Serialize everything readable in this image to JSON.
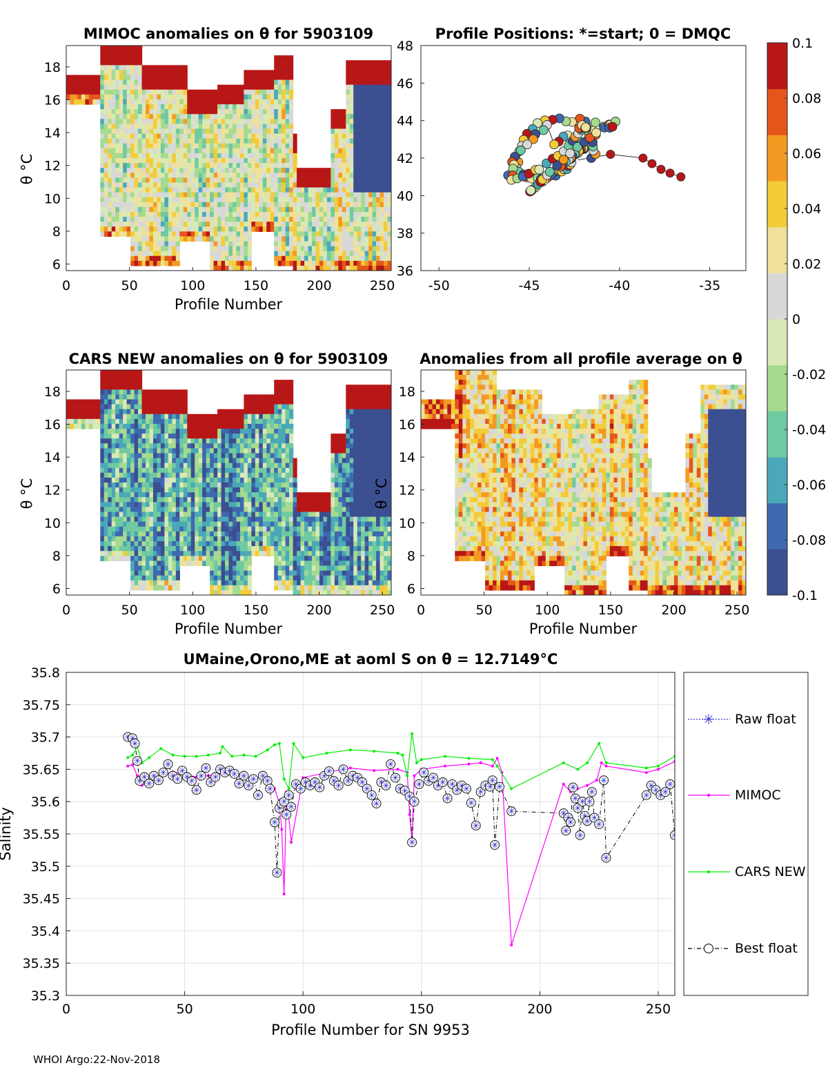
{
  "figure": {
    "footer": "WHOI Argo:22-Nov-2018",
    "colormap": [
      "#3b4f91",
      "#3f68b0",
      "#4aa8b8",
      "#6fcaa2",
      "#a5da8f",
      "#d8e9b5",
      "#d8d8d8",
      "#efe19a",
      "#f3cc3a",
      "#f39a22",
      "#e5561a",
      "#b81717"
    ]
  },
  "chart_data": [
    {
      "id": "mimoc-anomaly",
      "type": "heatmap",
      "title": "MIMOC anomalies on θ  for 5903109",
      "xlabel": "Profile Number",
      "ylabel": "θ °C",
      "xlim": [
        0,
        257
      ],
      "ylim": [
        5.6,
        19.3
      ],
      "xticks": [
        "0",
        "50",
        "100",
        "150",
        "200",
        "250"
      ],
      "yticks": [
        "6",
        "8",
        "10",
        "12",
        "14",
        "16",
        "18"
      ],
      "bias": 0.0,
      "top_hot": true
    },
    {
      "id": "profile-positions",
      "type": "scatter",
      "title": "Profile Positions: *=start; 0 = DMQC",
      "xlim": [
        -51,
        -33
      ],
      "ylim": [
        36,
        48
      ],
      "xticks": [
        "-50",
        "-45",
        "-40",
        "-35"
      ],
      "yticks": [
        "36",
        "38",
        "40",
        "42",
        "44",
        "46",
        "48"
      ],
      "track_note": "about 256 float positions colored by anomaly, centered near -43°E, 42°N",
      "spur": [
        [
          -40.5,
          42.2
        ],
        [
          -38.7,
          42.0
        ],
        [
          -38.2,
          41.7
        ],
        [
          -37.7,
          41.4
        ],
        [
          -37.2,
          41.2
        ],
        [
          -36.6,
          41.0
        ]
      ]
    },
    {
      "id": "cars-anomaly",
      "type": "heatmap",
      "title": "CARS NEW anomalies on θ for 5903109",
      "xlabel": "Profile Number",
      "ylabel": "θ °C",
      "xlim": [
        0,
        257
      ],
      "ylim": [
        5.6,
        19.3
      ],
      "xticks": [
        "0",
        "50",
        "100",
        "150",
        "200",
        "250"
      ],
      "yticks": [
        "6",
        "8",
        "10",
        "12",
        "14",
        "16",
        "18"
      ],
      "bias": -0.055,
      "top_hot": true
    },
    {
      "id": "average-anomaly",
      "type": "heatmap",
      "title": "Anomalies from all profile average on θ",
      "xlabel": "Profile Number",
      "ylabel": "θ °C",
      "xlim": [
        0,
        257
      ],
      "ylim": [
        5.6,
        19.3
      ],
      "xticks": [
        "0",
        "50",
        "100",
        "150",
        "200",
        "250"
      ],
      "yticks": [
        "6",
        "8",
        "10",
        "12",
        "14",
        "16",
        "18"
      ],
      "bias": 0.02,
      "top_hot": false
    },
    {
      "id": "colorbar",
      "type": "colorbar",
      "ticks": [
        "0.1",
        "0.08",
        "0.06",
        "0.04",
        "0.02",
        "0",
        "-0.02",
        "-0.04",
        "-0.06",
        "-0.08",
        "-0.1"
      ],
      "range": [
        -0.1,
        0.1
      ]
    },
    {
      "id": "salinity-series",
      "type": "line",
      "title": "UMaine,Orono,ME at aoml S on θ = 12.7149°C",
      "xlabel": "Profile Number for SN 9953",
      "ylabel": "Salinity",
      "xlim": [
        0,
        257
      ],
      "ylim": [
        35.3,
        35.8
      ],
      "xticks": [
        "0",
        "50",
        "100",
        "150",
        "200",
        "250"
      ],
      "yticks": [
        "35.3",
        "35.35",
        "35.4",
        "35.45",
        "35.5",
        "35.55",
        "35.6",
        "35.65",
        "35.7",
        "35.75",
        "35.8"
      ],
      "legend": [
        "Raw float",
        "MIMOC",
        "CARS NEW",
        "Best float"
      ],
      "series": [
        {
          "name": "MIMOC",
          "color": "#ff00ff",
          "x": [
            26,
            28,
            30,
            32,
            35,
            40,
            45,
            50,
            55,
            60,
            65,
            70,
            75,
            80,
            85,
            88,
            90,
            91,
            92,
            93,
            95,
            100,
            110,
            120,
            130,
            140,
            144,
            145,
            146,
            147,
            150,
            160,
            170,
            175,
            180,
            182,
            184,
            188,
            210,
            213,
            216,
            220,
            224,
            226,
            228,
            245,
            250,
            257
          ],
          "y": [
            35.655,
            35.657,
            35.64,
            35.625,
            35.632,
            35.64,
            35.646,
            35.642,
            35.638,
            35.64,
            35.644,
            35.641,
            35.638,
            35.637,
            35.637,
            35.62,
            35.598,
            35.557,
            35.457,
            35.615,
            35.537,
            35.637,
            35.645,
            35.652,
            35.648,
            35.65,
            35.645,
            35.58,
            35.54,
            35.64,
            35.65,
            35.655,
            35.658,
            35.66,
            35.655,
            35.667,
            35.645,
            35.378,
            35.627,
            35.615,
            35.62,
            35.625,
            35.633,
            35.66,
            35.655,
            35.645,
            35.65,
            35.662
          ]
        },
        {
          "name": "CARS NEW",
          "color": "#00ee00",
          "x": [
            26,
            28,
            30,
            32,
            35,
            40,
            45,
            50,
            55,
            60,
            65,
            66,
            70,
            75,
            80,
            85,
            88,
            90,
            92,
            94,
            96,
            100,
            110,
            120,
            130,
            140,
            142,
            144,
            146,
            148,
            150,
            160,
            170,
            180,
            182,
            188,
            210,
            216,
            220,
            225,
            228,
            245,
            250,
            257
          ],
          "y": [
            35.668,
            35.672,
            35.685,
            35.66,
            35.668,
            35.682,
            35.672,
            35.67,
            35.67,
            35.672,
            35.675,
            35.685,
            35.67,
            35.672,
            35.67,
            35.68,
            35.688,
            35.69,
            35.635,
            35.62,
            35.69,
            35.668,
            35.675,
            35.68,
            35.678,
            35.675,
            35.672,
            35.64,
            35.705,
            35.66,
            35.665,
            35.67,
            35.667,
            35.665,
            35.655,
            35.62,
            35.66,
            35.65,
            35.66,
            35.69,
            35.66,
            35.652,
            35.655,
            35.67
          ]
        },
        {
          "name": "Best float",
          "color": "#000000",
          "x": [
            26,
            28,
            29,
            30,
            31,
            33,
            35,
            37,
            39,
            41,
            43,
            45,
            47,
            49,
            51,
            53,
            55,
            57,
            59,
            61,
            63,
            65,
            67,
            69,
            71,
            73,
            75,
            77,
            79,
            81,
            83,
            85,
            86,
            88,
            89,
            90,
            91,
            92,
            93,
            94,
            95,
            97,
            99,
            101,
            103,
            105,
            107,
            109,
            111,
            113,
            115,
            117,
            119,
            121,
            123,
            125,
            127,
            129,
            131,
            133,
            135,
            137,
            139,
            141,
            143,
            145,
            146,
            147,
            149,
            151,
            153,
            155,
            157,
            159,
            161,
            163,
            165,
            167,
            169,
            171,
            173,
            175,
            177,
            179,
            180,
            181,
            183,
            188,
            210,
            211,
            212,
            213,
            214,
            215,
            216,
            217,
            218,
            219,
            220,
            221,
            222,
            223,
            225,
            227,
            228,
            245,
            247,
            249,
            251,
            253,
            255,
            257
          ],
          "y": [
            35.7,
            35.698,
            35.69,
            35.663,
            35.632,
            35.638,
            35.628,
            35.64,
            35.633,
            35.645,
            35.658,
            35.64,
            35.635,
            35.648,
            35.638,
            35.632,
            35.618,
            35.64,
            35.652,
            35.63,
            35.638,
            35.65,
            35.645,
            35.648,
            35.643,
            35.628,
            35.64,
            35.625,
            35.635,
            35.61,
            35.64,
            35.632,
            35.62,
            35.568,
            35.49,
            35.59,
            35.597,
            35.6,
            35.58,
            35.61,
            35.592,
            35.627,
            35.62,
            35.63,
            35.625,
            35.63,
            35.622,
            35.64,
            35.647,
            35.632,
            35.625,
            35.65,
            35.632,
            35.64,
            35.637,
            35.63,
            35.62,
            35.61,
            35.597,
            35.63,
            35.625,
            35.658,
            35.637,
            35.62,
            35.617,
            35.608,
            35.537,
            35.6,
            35.627,
            35.645,
            35.632,
            35.637,
            35.625,
            35.63,
            35.605,
            35.627,
            35.618,
            35.625,
            35.62,
            35.598,
            35.563,
            35.615,
            35.625,
            35.623,
            35.633,
            35.533,
            35.623,
            35.585,
            35.582,
            35.555,
            35.575,
            35.568,
            35.622,
            35.605,
            35.59,
            35.548,
            35.6,
            35.578,
            35.57,
            35.6,
            35.615,
            35.575,
            35.565,
            35.633,
            35.513,
            35.61,
            35.625,
            35.618,
            35.61,
            35.615,
            35.627,
            35.548
          ]
        }
      ]
    }
  ]
}
